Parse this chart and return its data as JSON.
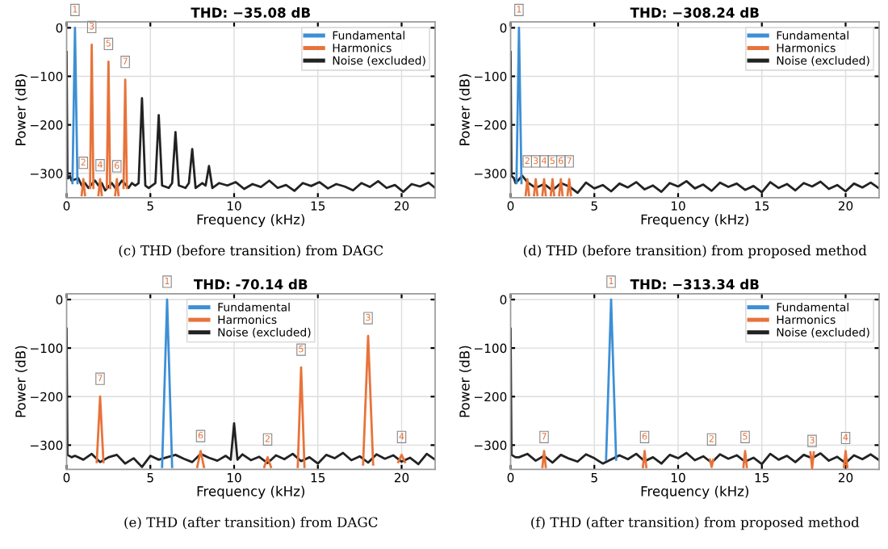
{
  "chart_data": [
    {
      "type": "line",
      "title": "THD: −35.08 dB",
      "xlabel": "Frequency (kHz)",
      "ylabel": "Power (dB)",
      "xlim": [
        0,
        22
      ],
      "ylim": [
        -350,
        12
      ],
      "xticks": [
        0,
        5,
        10,
        15,
        20
      ],
      "yticks": [
        -300,
        -200,
        -100,
        0
      ],
      "grid": true,
      "legend": "top right",
      "annotations": [
        "(c) THD (before transition) from DAGC",
        {
          "text": "1",
          "x": 0.5,
          "y": 0
        },
        {
          "text": "2",
          "x": 1.0,
          "y": -315
        },
        {
          "text": "3",
          "x": 1.5,
          "y": -35
        },
        {
          "text": "4",
          "x": 2.0,
          "y": -320
        },
        {
          "text": "5",
          "x": 2.5,
          "y": -70
        },
        {
          "text": "6",
          "x": 3.0,
          "y": -322
        },
        {
          "text": "7",
          "x": 3.5,
          "y": -107
        }
      ],
      "series": [
        {
          "name": "Fundamental",
          "color": "#3d8fd6",
          "x": [
            0.35,
            0.5,
            0.65
          ],
          "values": [
            -320,
            0,
            -320
          ]
        },
        {
          "name": "Harmonics",
          "color": "#e8733a",
          "x": [
            0.9,
            1.0,
            1.1,
            1.2,
            1.4,
            1.5,
            1.6,
            1.7,
            1.9,
            2.0,
            2.1,
            2.2,
            2.4,
            2.5,
            2.6,
            2.7,
            2.9,
            3.0,
            3.1,
            3.2,
            3.4,
            3.5,
            3.6
          ],
          "values": [
            -345,
            -312,
            -345,
            null,
            -330,
            -35,
            -330,
            null,
            -345,
            -312,
            -345,
            null,
            -330,
            -70,
            -330,
            null,
            -345,
            -312,
            -345,
            null,
            -330,
            -107,
            -330
          ]
        },
        {
          "name": "Noise (excluded)",
          "color": "#222222",
          "x": [
            0,
            0.05,
            0.1,
            0.2,
            0.3,
            0.7,
            0.9,
            1.1,
            1.3,
            1.7,
            1.9,
            2.1,
            2.3,
            2.7,
            2.9,
            3.1,
            3.3,
            3.7,
            3.9,
            4.1,
            4.3,
            4.5,
            4.7,
            4.9,
            5.3,
            5.5,
            5.7,
            6.1,
            6.3,
            6.5,
            6.7,
            7.1,
            7.3,
            7.5,
            7.7,
            8.1,
            8.3,
            8.5,
            8.7,
            9.1,
            9.6,
            10.1,
            10.6,
            11.1,
            11.6,
            12.1,
            12.6,
            13.1,
            13.6,
            14.1,
            14.6,
            15.1,
            15.6,
            16.1,
            16.6,
            17.1,
            17.6,
            18.1,
            18.6,
            19.1,
            19.6,
            20.1,
            20.6,
            21.1,
            21.6,
            22
          ],
          "values": [
            -50,
            -310,
            -310,
            -305,
            -315,
            -310,
            -325,
            -320,
            -330,
            -315,
            -325,
            -320,
            -335,
            -320,
            -330,
            -325,
            -315,
            -330,
            -320,
            -325,
            -320,
            -145,
            -325,
            -330,
            -320,
            -180,
            -325,
            -330,
            -320,
            -215,
            -325,
            -330,
            -320,
            -250,
            -330,
            -320,
            -325,
            -285,
            -330,
            -320,
            -325,
            -318,
            -332,
            -322,
            -328,
            -315,
            -330,
            -324,
            -336,
            -320,
            -326,
            -318,
            -331,
            -322,
            -327,
            -335,
            -320,
            -328,
            -316,
            -330,
            -324,
            -338,
            -322,
            -327,
            -319,
            -330
          ]
        }
      ]
    },
    {
      "type": "line",
      "title": "THD: −308.24 dB",
      "xlabel": "Frequency (kHz)",
      "ylabel": "Power (dB)",
      "xlim": [
        0,
        22
      ],
      "ylim": [
        -350,
        12
      ],
      "xticks": [
        0,
        5,
        10,
        15,
        20
      ],
      "yticks": [
        -300,
        -200,
        -100,
        0
      ],
      "grid": true,
      "legend": "top right",
      "annotations": [
        "(d) THD (before transition) from proposed method",
        {
          "text": "1",
          "x": 0.5,
          "y": 0
        },
        {
          "text": "2",
          "x": 1.0,
          "y": -312
        },
        {
          "text": "3",
          "x": 1.5,
          "y": -312
        },
        {
          "text": "4",
          "x": 2.0,
          "y": -312
        },
        {
          "text": "5",
          "x": 2.5,
          "y": -312
        },
        {
          "text": "6",
          "x": 3.0,
          "y": -312
        },
        {
          "text": "7",
          "x": 3.5,
          "y": -312
        }
      ],
      "series": [
        {
          "name": "Fundamental",
          "color": "#3d8fd6",
          "x": [
            0.35,
            0.5,
            0.65
          ],
          "values": [
            -320,
            0,
            -320
          ]
        },
        {
          "name": "Harmonics",
          "color": "#e8733a",
          "x": [
            0.9,
            1.0,
            1.1,
            1.2,
            1.4,
            1.5,
            1.6,
            1.7,
            1.9,
            2.0,
            2.1,
            2.2,
            2.4,
            2.5,
            2.6,
            2.7,
            2.9,
            3.0,
            3.1,
            3.2,
            3.4,
            3.5,
            3.6
          ],
          "values": [
            -345,
            -312,
            -345,
            null,
            -345,
            -312,
            -345,
            null,
            -345,
            -312,
            -345,
            null,
            -345,
            -312,
            -345,
            null,
            -345,
            -312,
            -345,
            null,
            -345,
            -312,
            -345
          ]
        },
        {
          "name": "Noise (excluded)",
          "color": "#222222",
          "x": [
            0,
            0.05,
            0.2,
            0.3,
            0.7,
            1.0,
            1.5,
            2.0,
            2.5,
            3.0,
            3.5,
            4.0,
            4.5,
            5.0,
            5.5,
            6.0,
            6.5,
            7.0,
            7.5,
            8.0,
            8.5,
            9.0,
            9.5,
            10.0,
            10.5,
            11.0,
            11.5,
            12.0,
            12.5,
            13.0,
            13.5,
            14.0,
            14.5,
            15.0,
            15.5,
            16.0,
            16.5,
            17.0,
            17.5,
            18.0,
            18.5,
            19.0,
            19.5,
            20.0,
            20.5,
            21.0,
            21.5,
            22.0
          ],
          "values": [
            -50,
            -305,
            -310,
            -320,
            -305,
            -318,
            -330,
            -322,
            -335,
            -320,
            -327,
            -340,
            -319,
            -331,
            -324,
            -337,
            -321,
            -329,
            -318,
            -333,
            -325,
            -338,
            -320,
            -327,
            -316,
            -331,
            -323,
            -336,
            -319,
            -328,
            -321,
            -334,
            -326,
            -339,
            -318,
            -330,
            -322,
            -335,
            -320,
            -327,
            -317,
            -332,
            -324,
            -337,
            -321,
            -329,
            -319,
            -331
          ]
        }
      ]
    },
    {
      "type": "line",
      "title": "THD: -70.14 dB",
      "xlabel": "Frequency (kHz)",
      "ylabel": "Power (dB)",
      "xlim": [
        0,
        22
      ],
      "ylim": [
        -350,
        12
      ],
      "xticks": [
        0,
        5,
        10,
        15,
        20
      ],
      "yticks": [
        -300,
        -200,
        -100,
        0
      ],
      "grid": true,
      "legend": "top",
      "annotations": [
        "(e) THD (after transition) from DAGC",
        {
          "text": "1",
          "x": 6.0,
          "y": 0
        },
        {
          "text": "7",
          "x": 2.0,
          "y": -200
        },
        {
          "text": "6",
          "x": 8.0,
          "y": -318
        },
        {
          "text": "2",
          "x": 12.0,
          "y": -325
        },
        {
          "text": "5",
          "x": 14.0,
          "y": -140
        },
        {
          "text": "3",
          "x": 18.0,
          "y": -75
        },
        {
          "text": "4",
          "x": 20.0,
          "y": -320
        }
      ],
      "series": [
        {
          "name": "Fundamental",
          "color": "#3d8fd6",
          "x": [
            5.7,
            6.0,
            6.3
          ],
          "values": [
            -345,
            0,
            -345
          ]
        },
        {
          "name": "Harmonics",
          "color": "#e8733a",
          "x": [
            1.8,
            2.0,
            2.2,
            2.3,
            7.8,
            8.0,
            8.2,
            8.3,
            11.8,
            12.0,
            12.2,
            12.3,
            13.8,
            14.0,
            14.2,
            14.3,
            17.7,
            18.0,
            18.3,
            18.4,
            19.8,
            20.0,
            20.2
          ],
          "values": [
            -335,
            -200,
            -335,
            null,
            -345,
            -312,
            -345,
            null,
            -345,
            -325,
            -345,
            null,
            -345,
            -140,
            -345,
            null,
            -340,
            -75,
            -340,
            null,
            -335,
            -320,
            -335
          ]
        },
        {
          "name": "Noise (excluded)",
          "color": "#222222",
          "x": [
            0,
            0.05,
            0.3,
            0.5,
            1.0,
            1.5,
            2.0,
            2.5,
            3.0,
            3.5,
            4.0,
            4.5,
            5.0,
            5.5,
            6.5,
            7.0,
            7.5,
            8.0,
            8.5,
            9.0,
            9.5,
            9.8,
            10.0,
            10.2,
            10.5,
            11.0,
            11.5,
            12.0,
            12.5,
            13.0,
            13.5,
            14.0,
            14.5,
            15.0,
            15.5,
            16.0,
            16.5,
            17.0,
            17.5,
            18.0,
            18.5,
            19.0,
            19.5,
            20.0,
            20.5,
            21.0,
            21.5,
            22.0
          ],
          "values": [
            -60,
            -320,
            -325,
            -322,
            -330,
            -318,
            -335,
            -325,
            -320,
            -338,
            -327,
            -345,
            -322,
            -330,
            -320,
            -328,
            -335,
            -318,
            -326,
            -332,
            -322,
            -330,
            -255,
            -330,
            -319,
            -331,
            -324,
            -337,
            -321,
            -329,
            -318,
            -333,
            -325,
            -338,
            -320,
            -327,
            -316,
            -331,
            -323,
            -336,
            -319,
            -328,
            -321,
            -334,
            -326,
            -339,
            -318,
            -330
          ]
        }
      ]
    },
    {
      "type": "line",
      "title": "THD: −313.34 dB",
      "xlabel": "Frequency (kHz)",
      "ylabel": "Power (dB)",
      "xlim": [
        0,
        22
      ],
      "ylim": [
        -350,
        12
      ],
      "xticks": [
        0,
        5,
        10,
        15,
        20
      ],
      "yticks": [
        -300,
        -200,
        -100,
        0
      ],
      "grid": true,
      "legend": "top right",
      "annotations": [
        "(f) THD (after transition) from proposed method",
        {
          "text": "1",
          "x": 6.0,
          "y": 0
        },
        {
          "text": "7",
          "x": 2.0,
          "y": -320
        },
        {
          "text": "6",
          "x": 8.0,
          "y": -320
        },
        {
          "text": "2",
          "x": 12.0,
          "y": -325
        },
        {
          "text": "5",
          "x": 14.0,
          "y": -320
        },
        {
          "text": "3",
          "x": 18.0,
          "y": -328
        },
        {
          "text": "4",
          "x": 20.0,
          "y": -322
        }
      ],
      "series": [
        {
          "name": "Fundamental",
          "color": "#3d8fd6",
          "x": [
            5.7,
            6.0,
            6.3
          ],
          "values": [
            -330,
            0,
            -330
          ]
        },
        {
          "name": "Harmonics",
          "color": "#e8733a",
          "x": [
            1.9,
            2.0,
            2.1,
            2.2,
            7.9,
            8.0,
            8.1,
            8.2,
            11.9,
            12.0,
            12.1,
            12.2,
            13.9,
            14.0,
            14.1,
            14.2,
            17.9,
            18.0,
            18.1,
            18.2,
            19.9,
            20.0,
            20.1
          ],
          "values": [
            -345,
            -312,
            -345,
            null,
            -345,
            -312,
            -345,
            null,
            -330,
            -345,
            -330,
            null,
            -345,
            -312,
            -345,
            null,
            -315,
            -348,
            -315,
            null,
            -345,
            -312,
            -345
          ]
        },
        {
          "name": "Noise (excluded)",
          "color": "#222222",
          "x": [
            0,
            0.05,
            0.3,
            0.5,
            1.0,
            1.5,
            2.0,
            2.5,
            3.0,
            3.5,
            4.0,
            4.5,
            5.0,
            5.5,
            6.5,
            7.0,
            7.5,
            8.0,
            8.5,
            9.0,
            9.5,
            10.0,
            10.5,
            11.0,
            11.5,
            12.0,
            12.5,
            13.0,
            13.5,
            14.0,
            14.5,
            15.0,
            15.5,
            16.0,
            16.5,
            17.0,
            17.5,
            18.0,
            18.5,
            19.0,
            19.5,
            20.0,
            20.5,
            21.0,
            21.5,
            22.0
          ],
          "values": [
            -60,
            -320,
            -325,
            -325,
            -318,
            -332,
            -322,
            -336,
            -320,
            -328,
            -334,
            -319,
            -327,
            -338,
            -321,
            -329,
            -318,
            -333,
            -325,
            -338,
            -320,
            -327,
            -316,
            -331,
            -323,
            -336,
            -319,
            -328,
            -321,
            -334,
            -326,
            -339,
            -318,
            -330,
            -322,
            -335,
            -320,
            -327,
            -317,
            -332,
            -324,
            -337,
            -321,
            -329,
            -319,
            -331
          ]
        }
      ]
    }
  ]
}
